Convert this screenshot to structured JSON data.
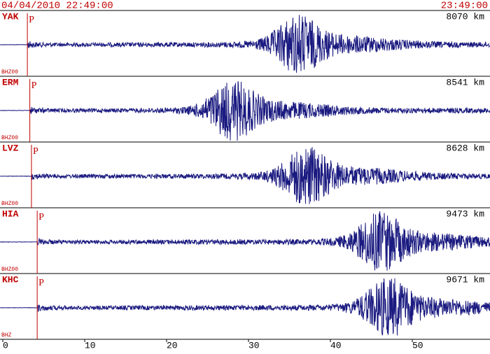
{
  "header": {
    "start": "04/04/2010 22:49:00",
    "end": "23:49:00"
  },
  "panels": [
    {
      "station": "YAK",
      "channel": "BHZ00",
      "distance": "8070 km",
      "p_arrival": 3.0,
      "surface_peak": 36
    },
    {
      "station": "ERM",
      "channel": "BHZ00",
      "distance": "8541 km",
      "p_arrival": 3.3,
      "surface_peak": 28
    },
    {
      "station": "LVZ",
      "channel": "BHZ00",
      "distance": "8628 km",
      "p_arrival": 3.5,
      "surface_peak": 37
    },
    {
      "station": "HIA",
      "channel": "BHZ00",
      "distance": "9473 km",
      "p_arrival": 4.2,
      "surface_peak": 46
    },
    {
      "station": "KHC",
      "channel": "BHZ",
      "distance": "9671 km",
      "p_arrival": 4.2,
      "surface_peak": 47
    }
  ],
  "x_axis": {
    "xlim": [
      0,
      60
    ],
    "xticks": [
      0,
      10,
      20,
      30,
      40,
      50
    ]
  }
}
